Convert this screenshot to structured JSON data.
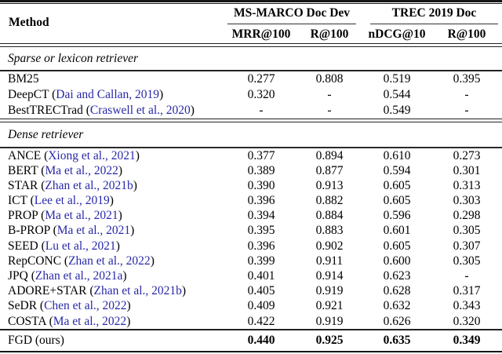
{
  "colors": {
    "citation_blue": "#2828a8",
    "text": "#000000",
    "background": "#ffffff"
  },
  "header": {
    "method_label": "Method",
    "groups": [
      {
        "label": "MS-MARCO Doc Dev",
        "subcols": [
          "MRR@100",
          "R@100"
        ]
      },
      {
        "label": "TREC 2019 Doc",
        "subcols": [
          "nDCG@10",
          "R@100"
        ]
      }
    ]
  },
  "sections": [
    {
      "title": "Sparse or lexicon retriever",
      "rows": [
        {
          "prefix": "BM25",
          "citation": "",
          "suffix": "",
          "values": [
            "0.277",
            "0.808",
            "0.519",
            "0.395"
          ]
        },
        {
          "prefix": "DeepCT (",
          "citation": "Dai and Callan, 2019",
          "suffix": ")",
          "values": [
            "0.320",
            "-",
            "0.544",
            "-"
          ]
        },
        {
          "prefix": "BestTRECTrad (",
          "citation": "Craswell et al., 2020",
          "suffix": ")",
          "values": [
            "-",
            "-",
            "0.549",
            "-"
          ]
        }
      ]
    },
    {
      "title": "Dense retriever",
      "rows": [
        {
          "prefix": "ANCE (",
          "citation": "Xiong et al., 2021",
          "suffix": ")",
          "values": [
            "0.377",
            "0.894",
            "0.610",
            "0.273"
          ]
        },
        {
          "prefix": "BERT (",
          "citation": "Ma et al., 2022",
          "suffix": ")",
          "values": [
            "0.389",
            "0.877",
            "0.594",
            "0.301"
          ]
        },
        {
          "prefix": "STAR (",
          "citation": "Zhan et al., 2021b",
          "suffix": ")",
          "values": [
            "0.390",
            "0.913",
            "0.605",
            "0.313"
          ]
        },
        {
          "prefix": "ICT (",
          "citation": "Lee et al., 2019",
          "suffix": ")",
          "values": [
            "0.396",
            "0.882",
            "0.605",
            "0.303"
          ]
        },
        {
          "prefix": "PROP (",
          "citation": "Ma et al., 2021",
          "suffix": ")",
          "values": [
            "0.394",
            "0.884",
            "0.596",
            "0.298"
          ]
        },
        {
          "prefix": "B-PROP (",
          "citation": "Ma et al., 2021",
          "suffix": ")",
          "values": [
            "0.395",
            "0.883",
            "0.601",
            "0.305"
          ]
        },
        {
          "prefix": "SEED (",
          "citation": "Lu et al., 2021",
          "suffix": ")",
          "values": [
            "0.396",
            "0.902",
            "0.605",
            "0.307"
          ]
        },
        {
          "prefix": "RepCONC (",
          "citation": "Zhan et al., 2022",
          "suffix": ")",
          "values": [
            "0.399",
            "0.911",
            "0.600",
            "0.305"
          ]
        },
        {
          "prefix": "JPQ (",
          "citation": "Zhan et al., 2021a",
          "suffix": ")",
          "values": [
            "0.401",
            "0.914",
            "0.623",
            "-"
          ]
        },
        {
          "prefix": "ADORE+STAR (",
          "citation": "Zhan et al., 2021b",
          "suffix": ")",
          "values": [
            "0.405",
            "0.919",
            "0.628",
            "0.317"
          ]
        },
        {
          "prefix": "SeDR (",
          "citation": "Chen et al., 2022",
          "suffix": ")",
          "values": [
            "0.409",
            "0.921",
            "0.632",
            "0.343"
          ]
        },
        {
          "prefix": "COSTA (",
          "citation": "Ma et al., 2022",
          "suffix": ")",
          "values": [
            "0.422",
            "0.919",
            "0.626",
            "0.320"
          ]
        }
      ]
    }
  ],
  "footer_row": {
    "prefix": "FGD (ours)",
    "citation": "",
    "suffix": "",
    "values": [
      "0.440",
      "0.925",
      "0.635",
      "0.349"
    ]
  }
}
